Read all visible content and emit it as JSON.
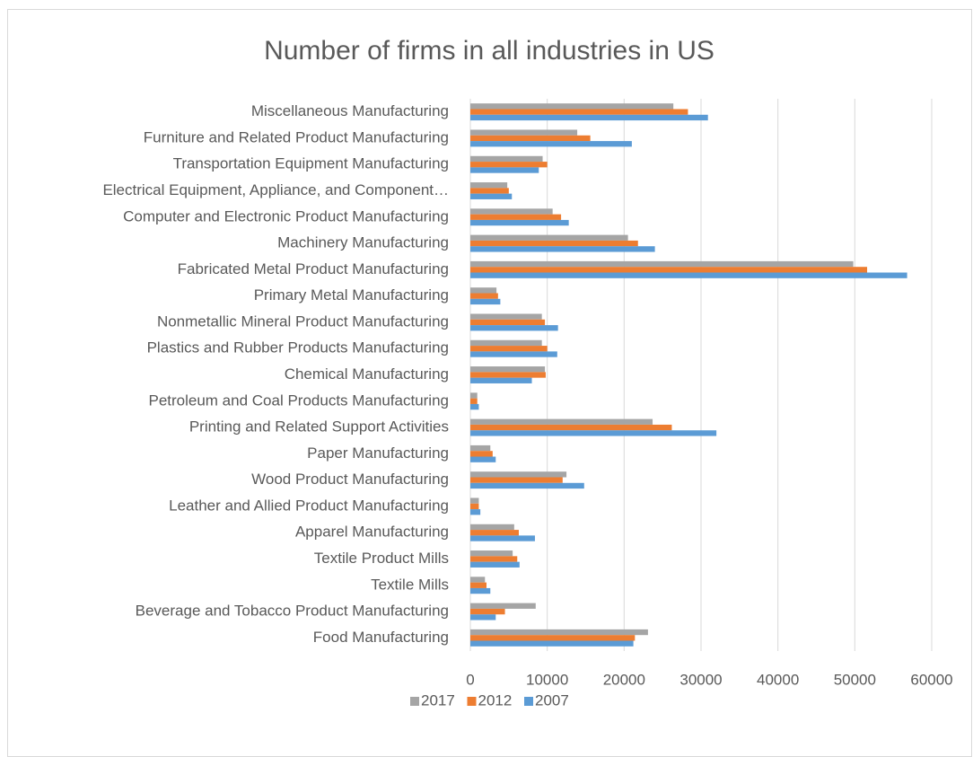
{
  "chart_data": {
    "type": "bar",
    "title": "Number of firms in all industries in US",
    "categories": [
      "Food Manufacturing",
      "Beverage and Tobacco Product Manufacturing",
      "Textile Mills",
      "Textile Product Mills",
      "Apparel Manufacturing",
      "Leather and Allied Product Manufacturing",
      "Wood Product Manufacturing",
      "Paper Manufacturing",
      "Printing and Related Support Activities",
      "Petroleum and Coal Products Manufacturing",
      "Chemical Manufacturing",
      "Plastics and Rubber Products Manufacturing",
      "Nonmetallic Mineral Product Manufacturing",
      "Primary Metal Manufacturing",
      "Fabricated Metal Product Manufacturing",
      "Machinery Manufacturing",
      "Computer and Electronic Product Manufacturing",
      "Electrical Equipment, Appliance, and Component…",
      "Transportation Equipment Manufacturing",
      "Furniture and Related Product Manufacturing",
      "Miscellaneous Manufacturing"
    ],
    "series": [
      {
        "name": "2017",
        "color": "#a5a5a5",
        "values": [
          23100,
          8500,
          1900,
          5500,
          5700,
          1100,
          12500,
          2600,
          23700,
          900,
          9700,
          9300,
          9300,
          3400,
          49800,
          20500,
          10700,
          4800,
          9400,
          13900,
          26400
        ]
      },
      {
        "name": "2012",
        "color": "#ed7d31",
        "values": [
          21400,
          4500,
          2100,
          6100,
          6300,
          1100,
          12000,
          2900,
          26200,
          900,
          9800,
          10000,
          9700,
          3600,
          51600,
          21800,
          11800,
          5000,
          10000,
          15600,
          28300
        ]
      },
      {
        "name": "2007",
        "color": "#5b9bd5",
        "values": [
          21200,
          3300,
          2600,
          6400,
          8400,
          1300,
          14800,
          3300,
          32000,
          1100,
          8000,
          11300,
          11400,
          3900,
          56800,
          24000,
          12800,
          5400,
          8900,
          21000,
          30900
        ]
      }
    ],
    "xlim": [
      0,
      60000
    ],
    "xticks": [
      0,
      10000,
      20000,
      30000,
      40000,
      50000,
      60000
    ],
    "grid": true,
    "legend": "bottom"
  }
}
